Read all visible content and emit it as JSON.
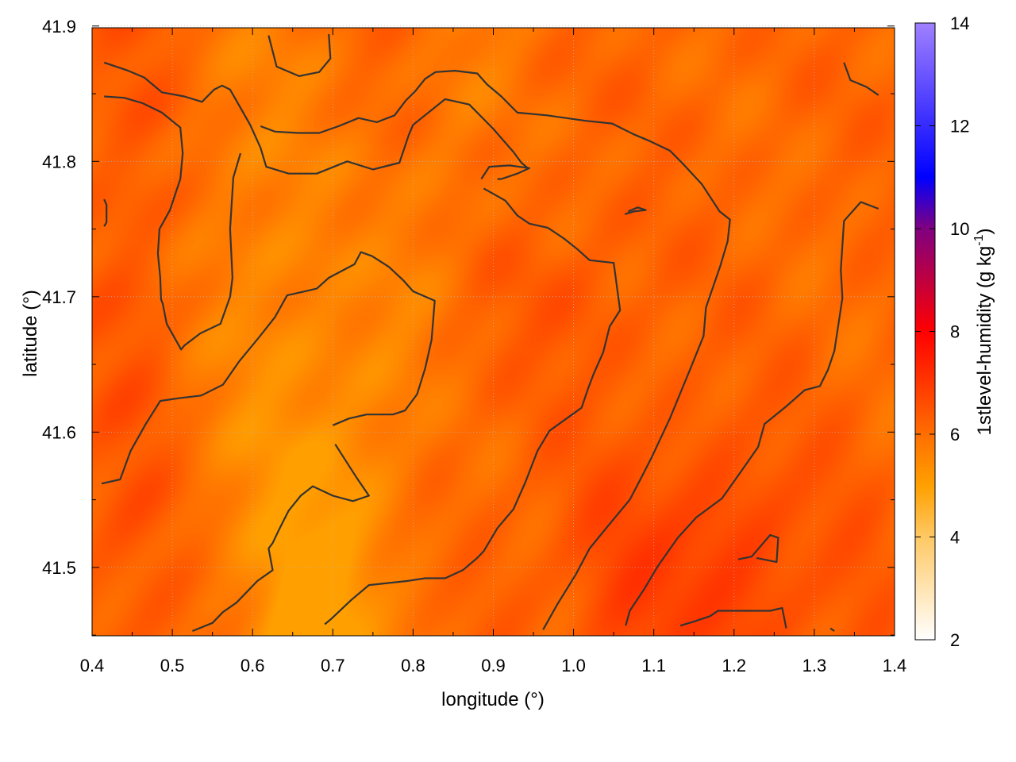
{
  "chart_data": {
    "type": "heatmap",
    "xlabel": "longitude (°)",
    "ylabel": "latitude (°)",
    "colorbar_label": "1stlevel-humidity (g kg",
    "colorbar_label_sup": "-1",
    "colorbar_label_end": ")",
    "xlim": [
      0.4,
      1.4
    ],
    "ylim": [
      41.45,
      41.9
    ],
    "x_ticks": [
      0.4,
      0.5,
      0.6,
      0.7,
      0.8,
      0.9,
      1.0,
      1.1,
      1.2,
      1.3,
      1.4
    ],
    "x_tick_labels": [
      "0.4",
      "0.5",
      "0.6",
      "0.7",
      "0.8",
      "0.9",
      "1.0",
      "1.1",
      "1.2",
      "1.3",
      "1.4"
    ],
    "y_ticks": [
      41.5,
      41.6,
      41.7,
      41.8,
      41.9
    ],
    "y_tick_labels": [
      "41.5",
      "41.6",
      "41.7",
      "41.8",
      "41.9"
    ],
    "colorbar_range": [
      2,
      14
    ],
    "colorbar_ticks": [
      2,
      4,
      6,
      8,
      10,
      12,
      14
    ],
    "colorbar_tick_labels": [
      "2",
      "4",
      "6",
      "8",
      "10",
      "12",
      "14"
    ],
    "colormap_stops": [
      {
        "value": 2,
        "color": "#ffffff"
      },
      {
        "value": 4,
        "color": "#ffc864"
      },
      {
        "value": 5,
        "color": "#ffa000"
      },
      {
        "value": 6,
        "color": "#ff6e00"
      },
      {
        "value": 8,
        "color": "#ff0000"
      },
      {
        "value": 10,
        "color": "#800080"
      },
      {
        "value": 11,
        "color": "#0000ff"
      },
      {
        "value": 14,
        "color": "#a080ff"
      }
    ],
    "field_range": [
      5.0,
      7.3
    ],
    "contour_color": "#333333",
    "grid": true,
    "contours": [
      [
        [
          0.415,
          41.873
        ],
        [
          0.445,
          41.867
        ],
        [
          0.465,
          41.862
        ],
        [
          0.487,
          41.851
        ],
        [
          0.515,
          41.848
        ],
        [
          0.537,
          41.844
        ],
        [
          0.552,
          41.853
        ],
        [
          0.562,
          41.856
        ],
        [
          0.572,
          41.853
        ],
        [
          0.597,
          41.827
        ],
        [
          0.61,
          41.81
        ],
        [
          0.617,
          41.796
        ],
        [
          0.645,
          41.791
        ],
        [
          0.68,
          41.791
        ],
        [
          0.718,
          41.8
        ],
        [
          0.75,
          41.794
        ],
        [
          0.783,
          41.799
        ],
        [
          0.795,
          41.82
        ],
        [
          0.8,
          41.827
        ],
        [
          0.84,
          41.846
        ],
        [
          0.87,
          41.842
        ],
        [
          0.9,
          41.824
        ],
        [
          0.925,
          41.807
        ],
        [
          0.935,
          41.799
        ],
        [
          0.943,
          41.795
        ]
      ],
      [
        [
          0.415,
          41.848
        ],
        [
          0.44,
          41.847
        ],
        [
          0.463,
          41.843
        ],
        [
          0.487,
          41.836
        ],
        [
          0.51,
          41.825
        ],
        [
          0.513,
          41.806
        ],
        [
          0.51,
          41.787
        ],
        [
          0.497,
          41.764
        ],
        [
          0.484,
          41.75
        ],
        [
          0.482,
          41.732
        ],
        [
          0.485,
          41.714
        ],
        [
          0.486,
          41.698
        ],
        [
          0.488,
          41.695
        ],
        [
          0.493,
          41.68
        ],
        [
          0.511,
          41.661
        ],
        [
          0.515,
          41.664
        ],
        [
          0.535,
          41.673
        ],
        [
          0.56,
          41.68
        ],
        [
          0.572,
          41.7
        ],
        [
          0.575,
          41.714
        ],
        [
          0.572,
          41.75
        ],
        [
          0.576,
          41.788
        ],
        [
          0.585,
          41.806
        ]
      ],
      [
        [
          0.415,
          41.772
        ],
        [
          0.418,
          41.768
        ],
        [
          0.418,
          41.755
        ],
        [
          0.415,
          41.752
        ]
      ],
      [
        [
          0.62,
          41.893
        ],
        [
          0.63,
          41.87
        ],
        [
          0.658,
          41.863
        ],
        [
          0.683,
          41.866
        ],
        [
          0.697,
          41.876
        ],
        [
          0.695,
          41.894
        ]
      ],
      [
        [
          0.61,
          41.826
        ],
        [
          0.628,
          41.822
        ],
        [
          0.657,
          41.821
        ],
        [
          0.683,
          41.821
        ],
        [
          0.707,
          41.826
        ],
        [
          0.732,
          41.832
        ],
        [
          0.755,
          41.829
        ],
        [
          0.777,
          41.834
        ],
        [
          0.791,
          41.845
        ],
        [
          0.803,
          41.852
        ],
        [
          0.815,
          41.861
        ],
        [
          0.828,
          41.866
        ],
        [
          0.852,
          41.867
        ],
        [
          0.88,
          41.865
        ],
        [
          0.892,
          41.857
        ],
        [
          0.91,
          41.848
        ],
        [
          0.93,
          41.836
        ],
        [
          0.967,
          41.834
        ],
        [
          1.015,
          41.83
        ],
        [
          1.048,
          41.828
        ],
        [
          1.075,
          41.82
        ],
        [
          1.095,
          41.815
        ],
        [
          1.12,
          41.808
        ],
        [
          1.135,
          41.799
        ],
        [
          1.16,
          41.783
        ],
        [
          1.182,
          41.763
        ],
        [
          1.195,
          41.757
        ],
        [
          1.192,
          41.741
        ],
        [
          1.183,
          41.723
        ],
        [
          1.165,
          41.692
        ],
        [
          1.162,
          41.671
        ],
        [
          1.145,
          41.646
        ],
        [
          1.12,
          41.61
        ],
        [
          1.097,
          41.581
        ],
        [
          1.085,
          41.567
        ],
        [
          1.07,
          41.55
        ],
        [
          1.042,
          41.53
        ],
        [
          1.02,
          41.514
        ],
        [
          1.003,
          41.495
        ],
        [
          0.98,
          41.473
        ],
        [
          0.962,
          41.454
        ]
      ],
      [
        [
          0.885,
          41.787
        ],
        [
          0.895,
          41.796
        ],
        [
          0.92,
          41.797
        ],
        [
          0.945,
          41.795
        ],
        [
          0.93,
          41.791
        ],
        [
          0.91,
          41.787
        ],
        [
          0.905,
          41.787
        ]
      ],
      [
        [
          0.888,
          41.78
        ],
        [
          0.915,
          41.771
        ],
        [
          0.93,
          41.76
        ],
        [
          0.945,
          41.754
        ],
        [
          0.968,
          41.751
        ],
        [
          0.988,
          41.743
        ],
        [
          1.005,
          41.735
        ],
        [
          1.02,
          41.727
        ],
        [
          1.05,
          41.725
        ],
        [
          1.058,
          41.69
        ],
        [
          1.045,
          41.678
        ],
        [
          1.037,
          41.659
        ],
        [
          1.025,
          41.643
        ],
        [
          1.018,
          41.632
        ],
        [
          1.01,
          41.618
        ],
        [
          0.97,
          41.601
        ],
        [
          0.955,
          41.586
        ],
        [
          0.94,
          41.563
        ],
        [
          0.925,
          41.543
        ],
        [
          0.905,
          41.529
        ],
        [
          0.888,
          41.512
        ],
        [
          0.88,
          41.507
        ],
        [
          0.862,
          41.498
        ],
        [
          0.84,
          41.492
        ],
        [
          0.815,
          41.492
        ],
        [
          0.793,
          41.49
        ],
        [
          0.745,
          41.487
        ],
        [
          0.723,
          41.476
        ],
        [
          0.698,
          41.462
        ],
        [
          0.69,
          41.458
        ]
      ],
      [
        [
          0.7,
          41.605
        ],
        [
          0.72,
          41.61
        ],
        [
          0.742,
          41.613
        ],
        [
          0.775,
          41.613
        ],
        [
          0.79,
          41.616
        ],
        [
          0.805,
          41.628
        ],
        [
          0.815,
          41.647
        ],
        [
          0.823,
          41.668
        ],
        [
          0.827,
          41.697
        ],
        [
          0.8,
          41.704
        ],
        [
          0.788,
          41.712
        ],
        [
          0.77,
          41.722
        ],
        [
          0.749,
          41.73
        ],
        [
          0.735,
          41.733
        ],
        [
          0.727,
          41.724
        ],
        [
          0.695,
          41.714
        ],
        [
          0.68,
          41.706
        ],
        [
          0.643,
          41.701
        ],
        [
          0.628,
          41.685
        ],
        [
          0.608,
          41.67
        ],
        [
          0.583,
          41.652
        ],
        [
          0.563,
          41.635
        ],
        [
          0.536,
          41.627
        ],
        [
          0.508,
          41.625
        ],
        [
          0.485,
          41.623
        ],
        [
          0.467,
          41.606
        ],
        [
          0.448,
          41.586
        ],
        [
          0.435,
          41.565
        ],
        [
          0.412,
          41.562
        ]
      ],
      [
        [
          0.703,
          41.591
        ],
        [
          0.73,
          41.566
        ],
        [
          0.745,
          41.553
        ],
        [
          0.725,
          41.549
        ],
        [
          0.7,
          41.553
        ],
        [
          0.675,
          41.56
        ],
        [
          0.66,
          41.553
        ],
        [
          0.645,
          41.542
        ],
        [
          0.633,
          41.528
        ],
        [
          0.625,
          41.518
        ],
        [
          0.62,
          41.514
        ],
        [
          0.625,
          41.498
        ],
        [
          0.606,
          41.49
        ],
        [
          0.58,
          41.474
        ],
        [
          0.563,
          41.467
        ],
        [
          0.55,
          41.459
        ],
        [
          0.525,
          41.453
        ]
      ],
      [
        [
          1.064,
          41.761
        ],
        [
          1.075,
          41.763
        ],
        [
          1.09,
          41.764
        ],
        [
          1.08,
          41.766
        ],
        [
          1.068,
          41.763
        ]
      ],
      [
        [
          1.133,
          41.457
        ],
        [
          1.15,
          41.46
        ],
        [
          1.17,
          41.464
        ],
        [
          1.18,
          41.468
        ],
        [
          1.245,
          41.468
        ],
        [
          1.26,
          41.47
        ],
        [
          1.265,
          41.455
        ]
      ],
      [
        [
          1.205,
          41.506
        ],
        [
          1.222,
          41.508
        ],
        [
          1.245,
          41.524
        ],
        [
          1.255,
          41.522
        ],
        [
          1.253,
          41.504
        ],
        [
          1.228,
          41.507
        ]
      ],
      [
        [
          1.337,
          41.873
        ],
        [
          1.345,
          41.86
        ],
        [
          1.365,
          41.855
        ],
        [
          1.38,
          41.849
        ]
      ],
      [
        [
          1.38,
          41.765
        ],
        [
          1.358,
          41.77
        ],
        [
          1.337,
          41.756
        ],
        [
          1.333,
          41.72
        ],
        [
          1.335,
          41.699
        ],
        [
          1.325,
          41.66
        ],
        [
          1.317,
          41.646
        ],
        [
          1.307,
          41.634
        ],
        [
          1.288,
          41.631
        ],
        [
          1.265,
          41.619
        ],
        [
          1.238,
          41.606
        ],
        [
          1.23,
          41.589
        ],
        [
          1.21,
          41.572
        ],
        [
          1.185,
          41.551
        ],
        [
          1.153,
          41.537
        ],
        [
          1.13,
          41.522
        ],
        [
          1.105,
          41.501
        ],
        [
          1.088,
          41.484
        ],
        [
          1.07,
          41.468
        ],
        [
          1.065,
          41.457
        ]
      ],
      [
        [
          1.32,
          41.455
        ],
        [
          1.325,
          41.453
        ]
      ]
    ]
  }
}
